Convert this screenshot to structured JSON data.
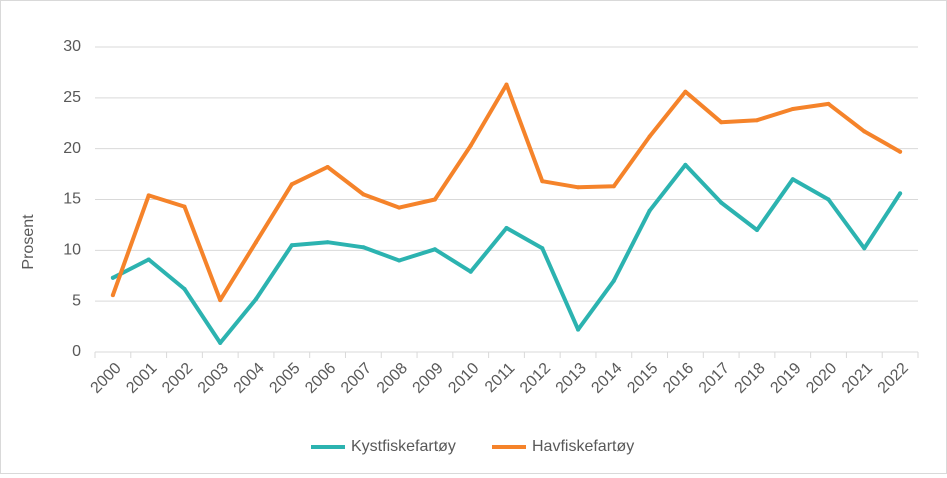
{
  "chart_data": {
    "type": "line",
    "title": "",
    "xlabel": "",
    "ylabel": "Prosent",
    "ylim": [
      0,
      30
    ],
    "yticks": [
      0,
      5,
      10,
      15,
      20,
      25,
      30
    ],
    "grid": true,
    "legend_position": "bottom",
    "categories": [
      "2000",
      "2001",
      "2002",
      "2003",
      "2004",
      "2005",
      "2006",
      "2007",
      "2008",
      "2009",
      "2010",
      "2011",
      "2012",
      "2013",
      "2014",
      "2015",
      "2016",
      "2017",
      "2018",
      "2019",
      "2020",
      "2021",
      "2022"
    ],
    "series": [
      {
        "name": "Kystfiskefartøy",
        "color": "#2cb3b0",
        "values": [
          7.3,
          9.1,
          6.2,
          0.9,
          5.2,
          10.5,
          10.8,
          10.3,
          9.0,
          10.1,
          7.9,
          12.2,
          10.2,
          2.2,
          7.0,
          13.9,
          18.4,
          14.7,
          12.0,
          17.0,
          15.0,
          10.2,
          15.6
        ]
      },
      {
        "name": "Havfiskefartøy",
        "color": "#f5832a",
        "values": [
          5.6,
          15.4,
          14.3,
          5.1,
          10.8,
          16.5,
          18.2,
          15.5,
          14.2,
          15.0,
          20.3,
          26.3,
          16.8,
          16.2,
          16.3,
          21.2,
          25.6,
          22.6,
          22.8,
          23.9,
          24.4,
          21.7,
          19.7
        ]
      }
    ]
  }
}
